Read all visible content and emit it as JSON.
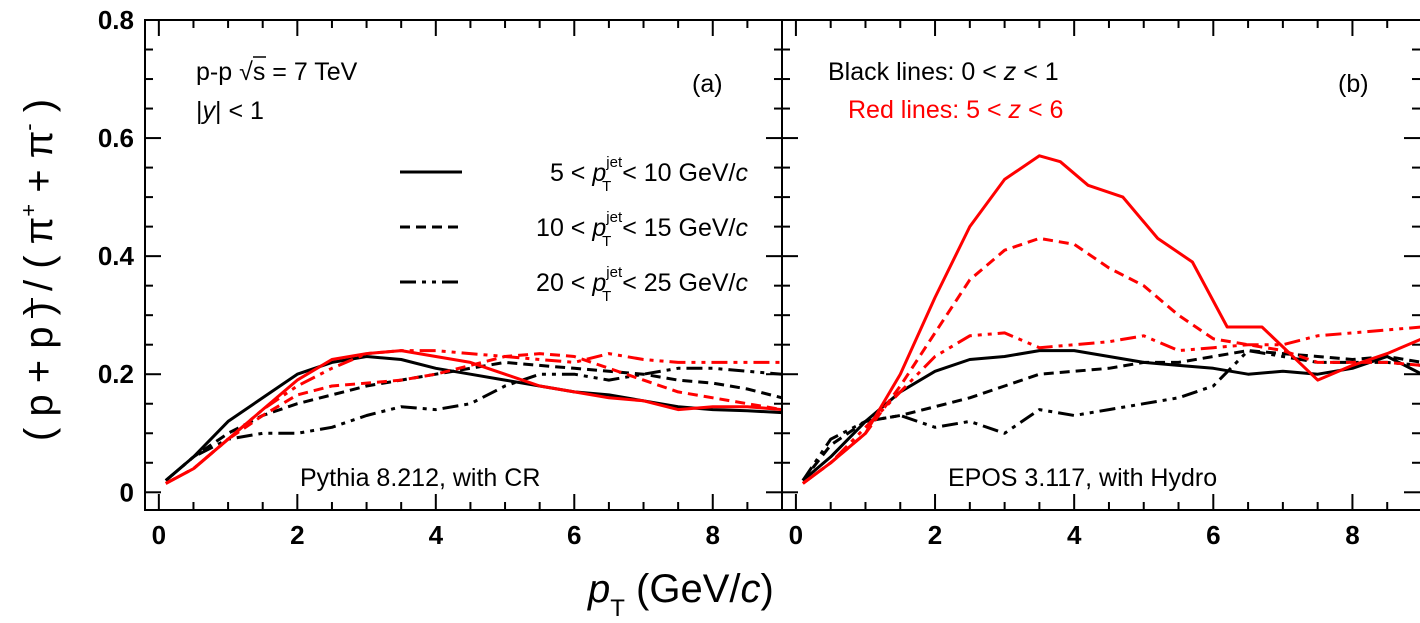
{
  "colors": {
    "black": "#000000",
    "red": "#ff0000"
  },
  "figure": {
    "ylabel_parts": [
      "( p + ",
      "p",
      " ) / ( π",
      "+",
      " + π",
      "-",
      " )"
    ],
    "xlabel_parts": [
      "p",
      "T",
      " (GeV/",
      "c",
      ")"
    ]
  },
  "panel_a": {
    "label": "(a)",
    "system_prefix": "p-p ",
    "system_sqrt": "√",
    "system_energy": "s = 7 TeV",
    "rapidity_prefix": "|",
    "rapidity_symbol": "y",
    "rapidity_suffix": "| < 1",
    "model": "Pythia 8.212, with CR",
    "legend": [
      {
        "low": "5",
        "high": "10",
        "style": "solid"
      },
      {
        "low": "10",
        "high": "15",
        "style": "dashed"
      },
      {
        "low": "20",
        "high": "25",
        "style": "dashdotdot"
      }
    ],
    "legend_p": "p",
    "legend_sup": "jet",
    "legend_sub": "T",
    "legend_unit": "GeV/",
    "legend_unit_c": "c",
    "legend_lt": "<"
  },
  "panel_b": {
    "label": "(b)",
    "black_note_prefix": "Black lines: 0 < ",
    "black_note_z": "z",
    "black_note_suffix": " < 1",
    "red_note_prefix": "Red lines: 5 < ",
    "red_note_z": "z",
    "red_note_suffix": " < 6",
    "model": "EPOS 3.117, with Hydro"
  },
  "chart_data": [
    {
      "type": "line",
      "panel": "a",
      "xlim": [
        -0.2,
        9.0
      ],
      "ylim": [
        -0.03,
        0.8
      ],
      "xticks": [
        "0",
        "2",
        "4",
        "6",
        "8"
      ],
      "yticks": [
        "0",
        "0.2",
        "0.4",
        "0.6",
        "0.8"
      ],
      "series": [
        {
          "color": "black",
          "style": "solid",
          "x": [
            0.1,
            0.5,
            1.0,
            1.5,
            2.0,
            2.5,
            3.0,
            3.5,
            4.0,
            4.5,
            5.0,
            5.5,
            6.0,
            6.5,
            7.0,
            7.5,
            8.0,
            8.5,
            9.0
          ],
          "y": [
            0.02,
            0.06,
            0.12,
            0.16,
            0.2,
            0.22,
            0.23,
            0.225,
            0.21,
            0.2,
            0.19,
            0.18,
            0.17,
            0.165,
            0.155,
            0.145,
            0.14,
            0.138,
            0.135
          ]
        },
        {
          "color": "black",
          "style": "dashed",
          "x": [
            0.1,
            0.5,
            1.0,
            1.5,
            2.0,
            2.5,
            3.0,
            3.5,
            4.0,
            4.5,
            5.0,
            5.5,
            6.0,
            6.5,
            7.0,
            7.5,
            8.0,
            8.5,
            9.0
          ],
          "y": [
            0.02,
            0.06,
            0.1,
            0.13,
            0.15,
            0.165,
            0.18,
            0.19,
            0.2,
            0.21,
            0.22,
            0.215,
            0.21,
            0.205,
            0.2,
            0.19,
            0.185,
            0.175,
            0.16
          ]
        },
        {
          "color": "black",
          "style": "dashdotdot",
          "x": [
            0.1,
            0.5,
            1.0,
            1.5,
            2.0,
            2.5,
            3.0,
            3.5,
            4.0,
            4.5,
            5.0,
            5.5,
            6.0,
            6.5,
            7.0,
            7.5,
            8.0,
            8.5,
            9.0
          ],
          "y": [
            0.02,
            0.06,
            0.09,
            0.1,
            0.1,
            0.11,
            0.13,
            0.145,
            0.14,
            0.15,
            0.18,
            0.2,
            0.2,
            0.19,
            0.2,
            0.21,
            0.21,
            0.205,
            0.2
          ]
        },
        {
          "color": "red",
          "style": "solid",
          "x": [
            0.1,
            0.5,
            1.0,
            1.5,
            2.0,
            2.5,
            3.0,
            3.5,
            4.0,
            4.5,
            5.0,
            5.5,
            6.0,
            6.5,
            7.0,
            7.5,
            8.0,
            8.5,
            9.0
          ],
          "y": [
            0.015,
            0.04,
            0.09,
            0.14,
            0.19,
            0.225,
            0.235,
            0.24,
            0.23,
            0.22,
            0.2,
            0.18,
            0.17,
            0.16,
            0.155,
            0.14,
            0.145,
            0.145,
            0.14
          ]
        },
        {
          "color": "red",
          "style": "dashed",
          "x": [
            0.1,
            0.5,
            1.0,
            1.5,
            2.0,
            2.5,
            3.0,
            3.5,
            4.0,
            4.5,
            5.0,
            5.5,
            6.0,
            6.5,
            7.0,
            7.5,
            8.0,
            8.5,
            9.0
          ],
          "y": [
            0.015,
            0.04,
            0.09,
            0.13,
            0.165,
            0.18,
            0.185,
            0.19,
            0.2,
            0.215,
            0.23,
            0.235,
            0.23,
            0.21,
            0.19,
            0.17,
            0.16,
            0.15,
            0.14
          ]
        },
        {
          "color": "red",
          "style": "dashdotdot",
          "x": [
            0.1,
            0.5,
            1.0,
            1.5,
            2.0,
            2.5,
            3.0,
            3.5,
            4.0,
            4.5,
            5.0,
            5.5,
            6.0,
            6.5,
            7.0,
            7.5,
            8.0,
            8.5,
            9.0
          ],
          "y": [
            0.015,
            0.04,
            0.09,
            0.14,
            0.18,
            0.21,
            0.235,
            0.24,
            0.24,
            0.235,
            0.23,
            0.225,
            0.22,
            0.235,
            0.225,
            0.22,
            0.22,
            0.22,
            0.22
          ]
        }
      ]
    },
    {
      "type": "line",
      "panel": "b",
      "xlim": [
        -0.2,
        9.0
      ],
      "ylim": [
        -0.03,
        0.8
      ],
      "xticks": [
        "0",
        "2",
        "4",
        "6",
        "8"
      ],
      "yticks": [
        "0",
        "0.2",
        "0.4",
        "0.6",
        "0.8"
      ],
      "series": [
        {
          "color": "black",
          "style": "solid",
          "x": [
            0.1,
            0.5,
            1.0,
            1.5,
            2.0,
            2.5,
            3.0,
            3.5,
            4.0,
            4.5,
            5.0,
            5.5,
            6.0,
            6.5,
            7.0,
            7.5,
            8.0,
            8.5,
            9.0
          ],
          "y": [
            0.02,
            0.06,
            0.12,
            0.17,
            0.205,
            0.225,
            0.23,
            0.24,
            0.24,
            0.23,
            0.22,
            0.215,
            0.21,
            0.2,
            0.205,
            0.2,
            0.21,
            0.23,
            0.2
          ]
        },
        {
          "color": "black",
          "style": "dashed",
          "x": [
            0.1,
            0.5,
            1.0,
            1.5,
            2.0,
            2.5,
            3.0,
            3.5,
            4.0,
            4.5,
            5.0,
            5.5,
            6.0,
            6.5,
            7.0,
            7.5,
            8.0,
            8.5,
            9.0
          ],
          "y": [
            0.02,
            0.08,
            0.12,
            0.13,
            0.145,
            0.16,
            0.18,
            0.2,
            0.205,
            0.21,
            0.22,
            0.22,
            0.23,
            0.24,
            0.235,
            0.23,
            0.225,
            0.23,
            0.22
          ]
        },
        {
          "color": "black",
          "style": "dashdotdot",
          "x": [
            0.1,
            0.5,
            1.0,
            1.5,
            2.0,
            2.5,
            3.0,
            3.5,
            4.0,
            4.5,
            5.0,
            5.5,
            6.0,
            6.5,
            7.0,
            7.5,
            8.0,
            8.5,
            9.0
          ],
          "y": [
            0.02,
            0.09,
            0.12,
            0.13,
            0.11,
            0.12,
            0.1,
            0.14,
            0.13,
            0.14,
            0.15,
            0.16,
            0.18,
            0.24,
            0.23,
            0.22,
            0.22,
            0.22,
            0.215
          ]
        },
        {
          "color": "red",
          "style": "solid",
          "x": [
            0.1,
            0.5,
            1.0,
            1.5,
            2.0,
            2.5,
            3.0,
            3.5,
            3.8,
            4.2,
            4.7,
            5.2,
            5.7,
            6.2,
            6.7,
            7.5,
            8.0,
            8.5,
            9.0
          ],
          "y": [
            0.015,
            0.05,
            0.1,
            0.2,
            0.33,
            0.45,
            0.53,
            0.57,
            0.56,
            0.52,
            0.5,
            0.43,
            0.39,
            0.28,
            0.28,
            0.19,
            0.215,
            0.235,
            0.26
          ]
        },
        {
          "color": "red",
          "style": "dashed",
          "x": [
            0.1,
            0.5,
            1.0,
            1.5,
            2.0,
            2.5,
            3.0,
            3.5,
            4.0,
            4.5,
            5.0,
            5.5,
            6.0,
            6.5,
            7.0,
            7.5,
            8.0,
            8.5,
            9.0
          ],
          "y": [
            0.015,
            0.05,
            0.1,
            0.18,
            0.27,
            0.36,
            0.41,
            0.43,
            0.42,
            0.38,
            0.35,
            0.3,
            0.26,
            0.25,
            0.24,
            0.22,
            0.22,
            0.22,
            0.215
          ]
        },
        {
          "color": "red",
          "style": "dashdotdot",
          "x": [
            0.1,
            0.5,
            1.0,
            1.5,
            2.0,
            2.5,
            3.0,
            3.5,
            4.0,
            4.5,
            5.0,
            5.5,
            6.0,
            6.5,
            7.0,
            7.5,
            8.0,
            8.5,
            9.0
          ],
          "y": [
            0.015,
            0.05,
            0.11,
            0.17,
            0.23,
            0.265,
            0.27,
            0.245,
            0.25,
            0.255,
            0.265,
            0.24,
            0.245,
            0.25,
            0.25,
            0.265,
            0.27,
            0.275,
            0.28
          ]
        }
      ]
    }
  ]
}
